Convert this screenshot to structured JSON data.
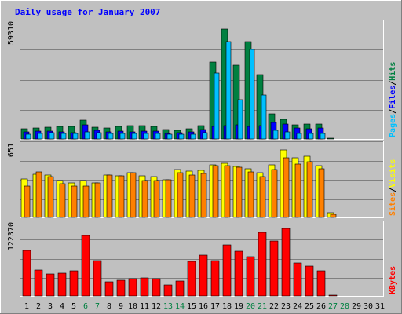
{
  "title": "Daily usage for January 2007",
  "colors": {
    "background": "#c0c0c0",
    "plot_bg": "#c0c0c0",
    "title": "#0000ff",
    "hits": "#008040",
    "files": "#0000ff",
    "pages": "#00c0ff",
    "visits": "#ffff00",
    "sites": "#ff8000",
    "kbytes": "#ff0000",
    "grid": "#808080",
    "weekend": "#008040",
    "weekday": "#000000"
  },
  "chart_data": [
    {
      "type": "bar",
      "name": "hits-files-pages",
      "ymax_label": "59310",
      "ylim": [
        0,
        59310
      ],
      "legend": [
        "Pages",
        "Files",
        "Hits"
      ],
      "categories": [
        "1",
        "2",
        "3",
        "4",
        "5",
        "6",
        "7",
        "8",
        "9",
        "10",
        "11",
        "12",
        "13",
        "14",
        "15",
        "16",
        "17",
        "18",
        "19",
        "20",
        "21",
        "22",
        "23",
        "24",
        "25",
        "26",
        "27",
        "28",
        "29",
        "30",
        "31"
      ],
      "series": [
        {
          "name": "Hits",
          "values": [
            5300,
            5700,
            6200,
            6600,
            6500,
            9500,
            6000,
            5800,
            6300,
            6800,
            6700,
            6500,
            4700,
            4600,
            5100,
            6900,
            39500,
            56500,
            38000,
            50000,
            33000,
            13000,
            10000,
            7200,
            7500,
            7600,
            500,
            0,
            0,
            0,
            0
          ]
        },
        {
          "name": "Files",
          "values": [
            3600,
            3900,
            3900,
            3500,
            3300,
            7200,
            4300,
            3500,
            4000,
            3800,
            4200,
            3900,
            2800,
            3100,
            3500,
            4900,
            6400,
            6800,
            7100,
            6600,
            6700,
            8500,
            7500,
            5800,
            5200,
            5500,
            0,
            0,
            0,
            0,
            0
          ]
        },
        {
          "name": "Pages",
          "values": [
            2600,
            3000,
            3100,
            2800,
            2800,
            3600,
            3300,
            2700,
            2800,
            3000,
            2900,
            2900,
            2400,
            2500,
            2600,
            3100,
            33700,
            50100,
            20100,
            46000,
            22400,
            4600,
            3800,
            2700,
            3000,
            3000,
            0,
            0,
            0,
            0,
            0
          ]
        }
      ]
    },
    {
      "type": "bar",
      "name": "visits-sites",
      "ymax_label": "651",
      "ylim": [
        0,
        651
      ],
      "legend": [
        "Sites",
        "Visits"
      ],
      "categories": [
        "1",
        "2",
        "3",
        "4",
        "5",
        "6",
        "7",
        "8",
        "9",
        "10",
        "11",
        "12",
        "13",
        "14",
        "15",
        "16",
        "17",
        "18",
        "19",
        "20",
        "21",
        "22",
        "23",
        "24",
        "25",
        "26",
        "27",
        "28",
        "29",
        "30",
        "31"
      ],
      "series": [
        {
          "name": "Visits",
          "values": [
            350,
            390,
            380,
            335,
            310,
            330,
            310,
            380,
            375,
            405,
            375,
            365,
            340,
            430,
            415,
            425,
            475,
            485,
            460,
            440,
            400,
            475,
            610,
            540,
            555,
            470,
            40,
            0,
            0,
            0,
            0
          ]
        },
        {
          "name": "Sites",
          "values": [
            285,
            410,
            365,
            305,
            285,
            280,
            310,
            385,
            375,
            400,
            335,
            330,
            340,
            405,
            380,
            395,
            470,
            465,
            450,
            410,
            370,
            430,
            535,
            480,
            500,
            440,
            30,
            0,
            0,
            0,
            0
          ]
        }
      ]
    },
    {
      "type": "bar",
      "name": "kbytes",
      "ymax_label": "122370",
      "ylim": [
        0,
        122370
      ],
      "legend": [
        "KBytes"
      ],
      "categories": [
        "1",
        "2",
        "3",
        "4",
        "5",
        "6",
        "7",
        "8",
        "9",
        "10",
        "11",
        "12",
        "13",
        "14",
        "15",
        "16",
        "17",
        "18",
        "19",
        "20",
        "21",
        "22",
        "23",
        "24",
        "25",
        "26",
        "27",
        "28",
        "29",
        "30",
        "31"
      ],
      "series": [
        {
          "name": "KBytes",
          "values": [
            78000,
            45000,
            38000,
            39000,
            43000,
            104000,
            61000,
            24000,
            27000,
            29000,
            31000,
            29000,
            19000,
            25000,
            59000,
            70000,
            61000,
            88000,
            76000,
            67000,
            109000,
            94000,
            115000,
            57000,
            51000,
            43000,
            2000,
            0,
            0,
            0,
            0
          ]
        }
      ]
    }
  ],
  "weekend_days": [
    "6",
    "7",
    "13",
    "14",
    "20",
    "21",
    "27",
    "28"
  ]
}
